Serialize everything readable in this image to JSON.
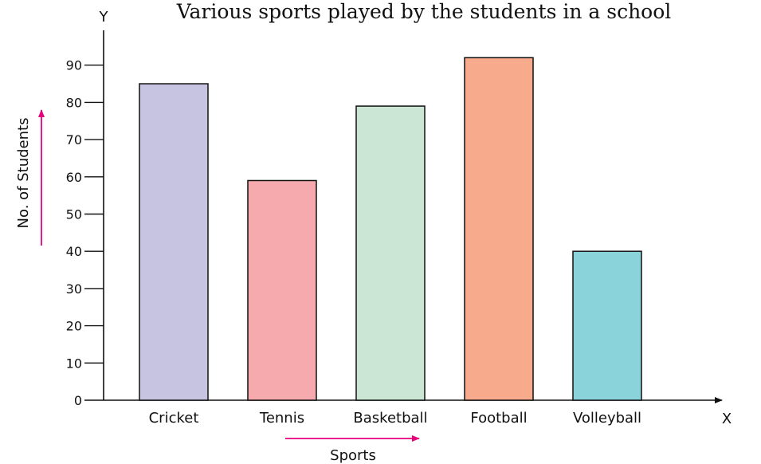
{
  "chart_data": {
    "type": "bar",
    "title": "Various sports played by the students in a school",
    "xlabel": "Sports",
    "ylabel": "No. of Students",
    "x_axis_letter": "X",
    "y_axis_letter": "Y",
    "categories": [
      "Cricket",
      "Tennis",
      "Basketball",
      "Football",
      "Volleyball"
    ],
    "values": [
      85,
      59,
      79,
      92,
      40
    ],
    "ylim": [
      0,
      100
    ],
    "yticks": [
      0,
      10,
      20,
      30,
      40,
      50,
      60,
      70,
      80,
      90
    ],
    "ytick_labels": [
      "0",
      "10",
      "20",
      "30",
      "40",
      "50",
      "60",
      "70",
      "80",
      "90"
    ],
    "colors": [
      "#c7c4e2",
      "#f6aaad",
      "#cce6d6",
      "#f8aa8c",
      "#8bd3da"
    ],
    "arrow_color": "#e6007e",
    "grid": false,
    "legend": "none"
  }
}
